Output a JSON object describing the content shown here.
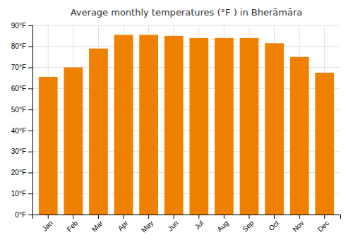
{
  "chart_data": {
    "type": "bar",
    "title": "Average monthly temperatures (°F ) in Bherāmāra",
    "categories": [
      "Jan",
      "Feb",
      "Mar",
      "Apr",
      "May",
      "Jun",
      "Jul",
      "Aug",
      "Sep",
      "Oct",
      "Nov",
      "Dec"
    ],
    "values": [
      65.5,
      70.0,
      79.0,
      85.5,
      85.5,
      85.0,
      84.0,
      84.0,
      84.0,
      81.5,
      75.0,
      67.5
    ],
    "color": "#F08000",
    "ylim": [
      0,
      90
    ],
    "yticks": [
      {
        "value": 0,
        "label": "0°F"
      },
      {
        "value": 10,
        "label": "10°F"
      },
      {
        "value": 20,
        "label": "20°F"
      },
      {
        "value": 30,
        "label": "30°F"
      },
      {
        "value": 40,
        "label": "40°F"
      },
      {
        "value": 50,
        "label": "50°F"
      },
      {
        "value": 60,
        "label": "60°F"
      },
      {
        "value": 70,
        "label": "70°F"
      },
      {
        "value": 80,
        "label": "80°F"
      },
      {
        "value": 90,
        "label": "90°F"
      }
    ],
    "grid": true
  }
}
